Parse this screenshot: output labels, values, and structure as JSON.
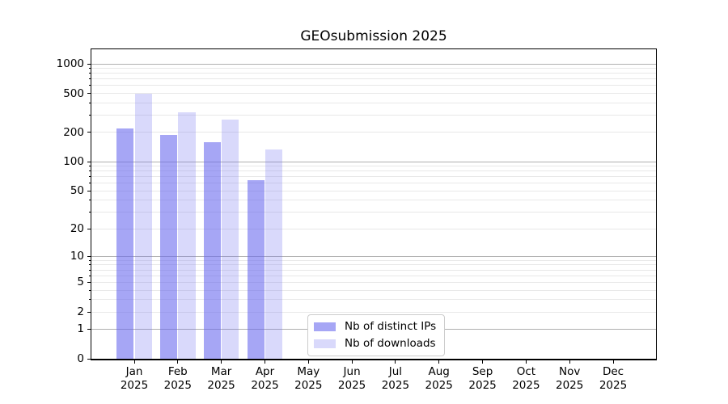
{
  "figure": {
    "title": "GEOsubmission 2025",
    "background": "#ffffff"
  },
  "chart_data": {
    "type": "bar",
    "title": "GEOsubmission 2025",
    "categories": [
      "Jan 2025",
      "Feb 2025",
      "Mar 2025",
      "Apr 2025",
      "May 2025",
      "Jun 2025",
      "Jul 2025",
      "Aug 2025",
      "Sep 2025",
      "Oct 2025",
      "Nov 2025",
      "Dec 2025"
    ],
    "series": [
      {
        "name": "Nb of distinct IPs",
        "color": "rgba(102,102,238,0.58)",
        "values": [
          220,
          190,
          160,
          65,
          null,
          null,
          null,
          null,
          null,
          null,
          null,
          null
        ]
      },
      {
        "name": "Nb of downloads",
        "color": "rgba(102,102,238,0.25)",
        "values": [
          500,
          320,
          270,
          133,
          null,
          null,
          null,
          null,
          null,
          null,
          null,
          null
        ]
      }
    ],
    "xlabel": "",
    "ylabel": "",
    "yscale": "log1p",
    "ytick_values": [
      0,
      1,
      2,
      5,
      10,
      20,
      50,
      100,
      200,
      500,
      1000
    ],
    "ytick_labels": [
      "0",
      "1",
      "2",
      "5",
      "10",
      "20",
      "50",
      "100",
      "200",
      "500",
      "1000"
    ],
    "ylim": [
      0,
      1414
    ],
    "grid": {
      "axis": "y",
      "major_color": "#b0b0b0",
      "minor_color": "#e8e8e8"
    },
    "legend": {
      "position": "lower-center-inside"
    }
  },
  "colors": {
    "spine": "#000000",
    "major_grid": "#b0b0b0",
    "minor_grid": "#e8e8e8"
  }
}
